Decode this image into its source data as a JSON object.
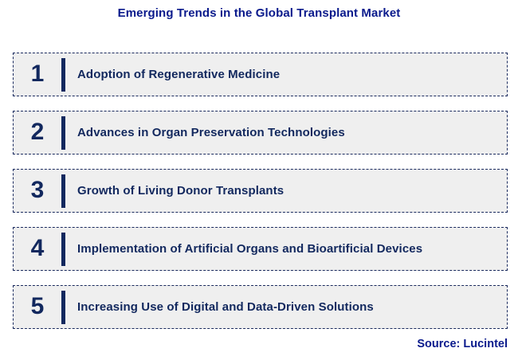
{
  "title": "Emerging Trends in the Global Transplant Market",
  "source": "Source: Lucintel",
  "colors": {
    "title_text": "#0a1a8c",
    "item_text": "#12285e",
    "number_text": "#12285e",
    "divider_bar": "#12285e",
    "box_background": "#efefef",
    "box_border": "#1a2a5e",
    "page_background": "#ffffff"
  },
  "trends": [
    {
      "number": "1",
      "label": "Adoption of Regenerative Medicine"
    },
    {
      "number": "2",
      "label": "Advances in Organ Preservation Technologies"
    },
    {
      "number": "3",
      "label": "Growth of Living Donor Transplants"
    },
    {
      "number": "4",
      "label": "Implementation of Artificial Organs and Bioartificial Devices"
    },
    {
      "number": "5",
      "label": "Increasing Use of Digital and Data-Driven Solutions"
    }
  ]
}
